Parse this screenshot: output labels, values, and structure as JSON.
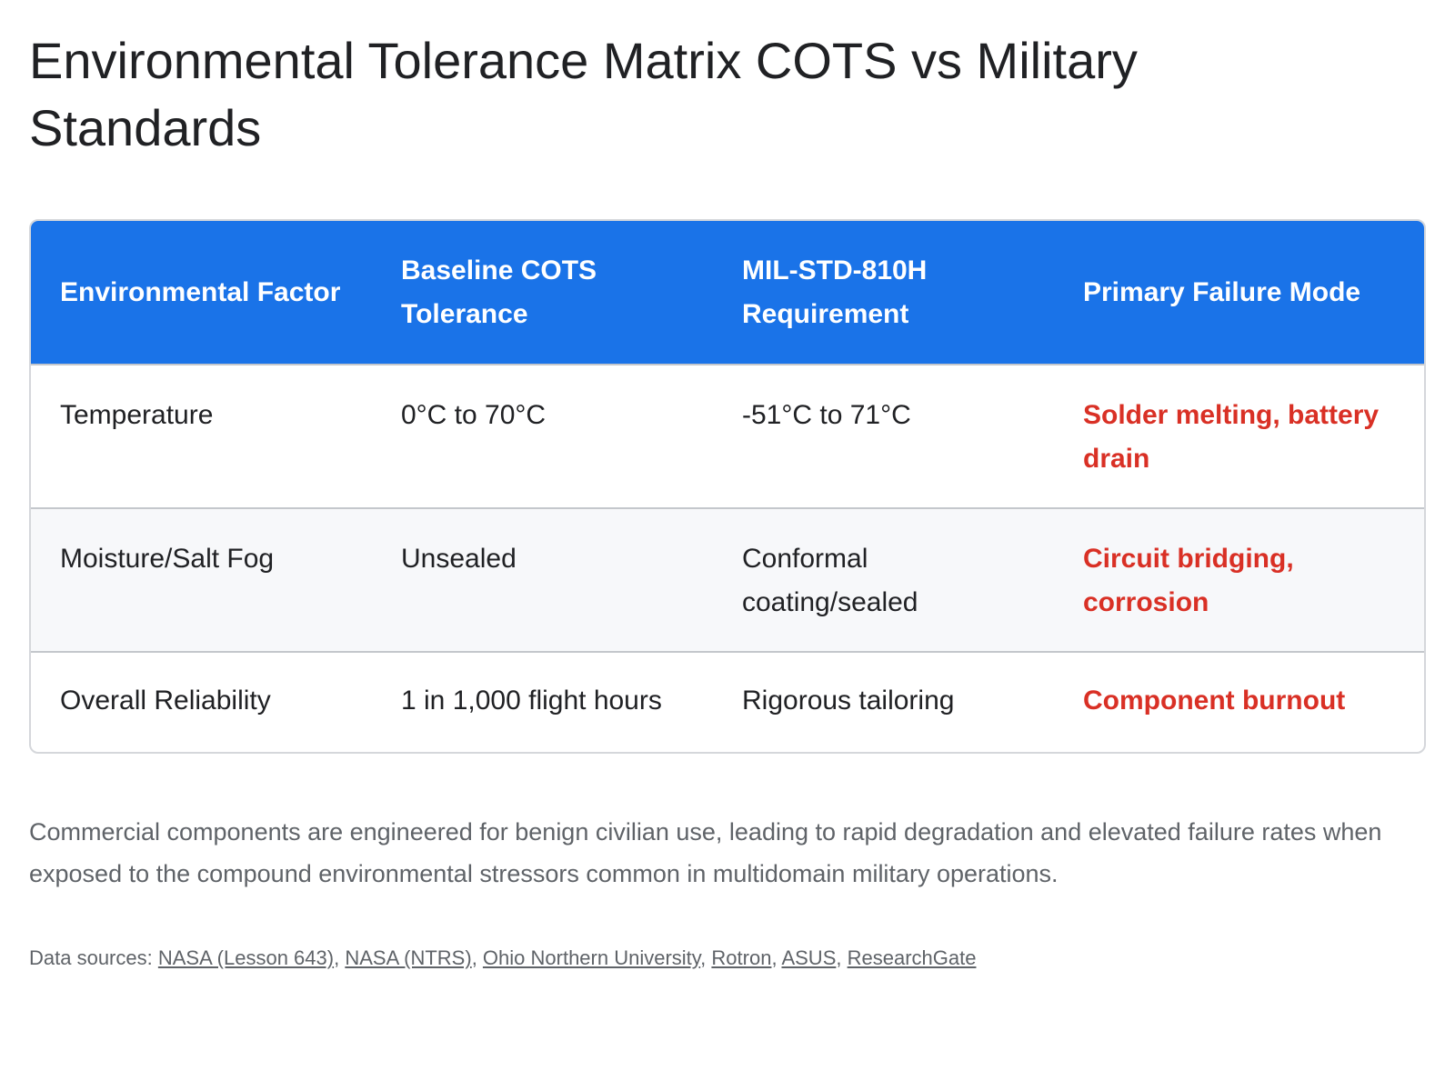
{
  "title": "Environmental Tolerance Matrix COTS vs Military Standards",
  "table": {
    "headers": [
      "Environmental Factor",
      "Baseline COTS Tolerance",
      "MIL-STD-810H Requirement",
      "Primary Failure Mode"
    ],
    "rows": [
      {
        "factor": "Temperature",
        "cots": "0°C to 70°C",
        "mil": "-51°C to 71°C",
        "failure": "Solder melting, battery drain"
      },
      {
        "factor": "Moisture/Salt Fog",
        "cots": "Unsealed",
        "mil": "Conformal coating/sealed",
        "failure": "Circuit bridging, corrosion"
      },
      {
        "factor": "Overall Reliability",
        "cots": "1 in 1,000 flight hours",
        "mil": "Rigorous tailoring",
        "failure": "Component burnout"
      }
    ]
  },
  "summary": "Commercial components are engineered for benign civilian use, leading to rapid degradation and elevated failure rates when exposed to the compound environmental stressors common in multidomain military operations.",
  "sources": {
    "label": "Data sources:",
    "links": [
      "NASA (Lesson 643)",
      "NASA (NTRS)",
      "Ohio Northern University",
      "Rotron",
      "ASUS",
      "ResearchGate"
    ]
  },
  "colors": {
    "header_bg": "#1a73e8",
    "failure_text": "#d93025",
    "alt_row_bg": "#f7f8fa"
  }
}
